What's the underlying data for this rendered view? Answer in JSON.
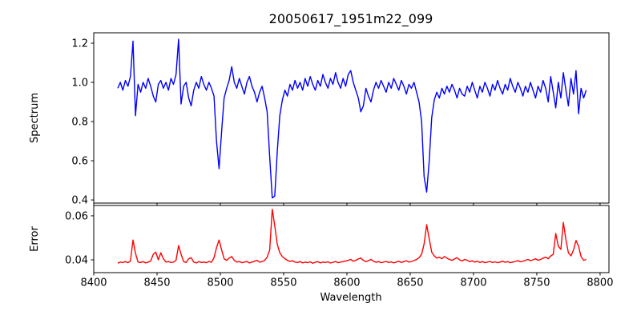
{
  "title": "20050617_1951m22_099",
  "colors": {
    "spectrum_line": "#0000ff",
    "error_line": "#ff0000",
    "frame": "#000000",
    "background": "#ffffff"
  },
  "chart_data": {
    "type": "line",
    "title": "20050617_1951m22_099",
    "xlabel": "Wavelength",
    "grid": false,
    "legend": "none",
    "xlim": [
      8400,
      8807
    ],
    "x_tick_values": [
      8400,
      8450,
      8500,
      8550,
      8600,
      8650,
      8700,
      8750,
      8800
    ],
    "x_tick_labels": [
      "8400",
      "8450",
      "8500",
      "8550",
      "8600",
      "8650",
      "8700",
      "8750",
      "8800"
    ],
    "panels": [
      {
        "name": "spectrum",
        "ylabel": "Spectrum",
        "line_color": "#0000ff",
        "ylim": [
          0.384,
          1.253
        ],
        "y_tick_values": [
          0.4,
          0.6,
          0.8,
          1.0,
          1.2
        ],
        "y_tick_labels": [
          "0.4",
          "0.6",
          "0.8",
          "1.0",
          "1.2"
        ],
        "x0": 8419,
        "dx": 2,
        "values": [
          0.97,
          1.0,
          0.96,
          1.01,
          0.98,
          1.03,
          1.21,
          0.83,
          0.99,
          0.95,
          1.0,
          0.97,
          1.02,
          0.98,
          0.93,
          0.9,
          0.99,
          1.01,
          0.97,
          1.0,
          0.96,
          1.02,
          0.99,
          1.04,
          1.22,
          0.89,
          0.98,
          1.0,
          0.92,
          0.88,
          0.96,
          1.0,
          0.97,
          1.03,
          0.99,
          0.96,
          1.0,
          0.97,
          0.93,
          0.7,
          0.56,
          0.75,
          0.92,
          0.97,
          1.01,
          1.08,
          1.0,
          0.97,
          1.02,
          0.98,
          0.94,
          1.0,
          1.03,
          0.98,
          0.95,
          0.9,
          0.95,
          0.98,
          0.92,
          0.85,
          0.62,
          0.41,
          0.42,
          0.65,
          0.83,
          0.91,
          0.96,
          0.93,
          0.99,
          0.96,
          1.01,
          0.97,
          1.0,
          0.96,
          1.02,
          0.98,
          1.03,
          0.99,
          0.96,
          1.01,
          0.98,
          1.04,
          1.0,
          0.97,
          1.02,
          0.99,
          1.05,
          1.0,
          0.97,
          1.02,
          0.98,
          1.04,
          1.06,
          1.0,
          0.96,
          0.92,
          0.85,
          0.88,
          0.97,
          0.93,
          0.9,
          0.96,
          1.0,
          0.97,
          1.01,
          0.98,
          0.95,
          1.0,
          0.97,
          1.02,
          0.99,
          0.96,
          1.01,
          0.98,
          0.94,
          0.99,
          0.97,
          1.0,
          0.95,
          0.9,
          0.8,
          0.52,
          0.44,
          0.6,
          0.82,
          0.91,
          0.95,
          0.92,
          0.97,
          0.94,
          0.98,
          0.95,
          0.99,
          0.96,
          0.92,
          0.97,
          0.94,
          0.93,
          0.98,
          0.95,
          1.0,
          0.96,
          0.92,
          0.98,
          0.95,
          1.0,
          0.97,
          0.93,
          0.99,
          0.96,
          1.01,
          0.97,
          0.94,
          0.99,
          0.96,
          1.02,
          0.98,
          0.95,
          1.0,
          0.97,
          0.93,
          0.98,
          0.95,
          1.0,
          0.96,
          0.92,
          0.98,
          0.95,
          1.01,
          0.97,
          0.9,
          1.03,
          0.95,
          0.87,
          1.0,
          0.92,
          1.05,
          0.96,
          0.88,
          1.02,
          0.94,
          1.06,
          0.84,
          0.97,
          0.92,
          0.96
        ]
      },
      {
        "name": "error",
        "ylabel": "Error",
        "line_color": "#ff0000",
        "ylim": [
          0.0342,
          0.0647
        ],
        "y_tick_values": [
          0.04,
          0.06
        ],
        "y_tick_labels": [
          "0.04",
          "0.06"
        ],
        "x0": 8419,
        "dx": 2,
        "values": [
          0.0385,
          0.039,
          0.0388,
          0.0392,
          0.0387,
          0.0395,
          0.049,
          0.043,
          0.039,
          0.0388,
          0.0392,
          0.0386,
          0.039,
          0.0395,
          0.0425,
          0.0435,
          0.04,
          0.0432,
          0.0405,
          0.039,
          0.0392,
          0.0388,
          0.039,
          0.0398,
          0.0465,
          0.0425,
          0.0392,
          0.0388,
          0.0405,
          0.041,
          0.039,
          0.0386,
          0.0392,
          0.0388,
          0.039,
          0.0387,
          0.0393,
          0.0389,
          0.041,
          0.0455,
          0.049,
          0.0445,
          0.0405,
          0.0398,
          0.0408,
          0.0415,
          0.0398,
          0.039,
          0.0393,
          0.0387,
          0.039,
          0.0392,
          0.0386,
          0.039,
          0.0394,
          0.0398,
          0.039,
          0.0392,
          0.0398,
          0.0412,
          0.0445,
          0.063,
          0.0555,
          0.047,
          0.0432,
          0.0415,
          0.0405,
          0.0398,
          0.0393,
          0.0396,
          0.039,
          0.0388,
          0.0392,
          0.0386,
          0.039,
          0.0387,
          0.0391,
          0.0385,
          0.0389,
          0.0392,
          0.0386,
          0.039,
          0.0388,
          0.0391,
          0.0386,
          0.0389,
          0.0393,
          0.0387,
          0.039,
          0.0392,
          0.0395,
          0.0398,
          0.0402,
          0.0394,
          0.0398,
          0.0404,
          0.0408,
          0.0398,
          0.0392,
          0.0396,
          0.0402,
          0.0394,
          0.0389,
          0.0392,
          0.0387,
          0.039,
          0.0393,
          0.0388,
          0.0391,
          0.0386,
          0.039,
          0.0394,
          0.0388,
          0.0392,
          0.0396,
          0.039,
          0.0393,
          0.0397,
          0.0402,
          0.041,
          0.0425,
          0.0472,
          0.056,
          0.0495,
          0.0435,
          0.0418,
          0.0408,
          0.0412,
          0.0405,
          0.0415,
          0.0408,
          0.0402,
          0.0398,
          0.0404,
          0.041,
          0.04,
          0.0395,
          0.0402,
          0.0398,
          0.0392,
          0.0396,
          0.039,
          0.0394,
          0.0388,
          0.0392,
          0.0387,
          0.039,
          0.0393,
          0.0388,
          0.0391,
          0.0387,
          0.039,
          0.0394,
          0.0389,
          0.0392,
          0.0387,
          0.039,
          0.0393,
          0.0397,
          0.0391,
          0.0394,
          0.0398,
          0.0402,
          0.0396,
          0.04,
          0.0405,
          0.0398,
          0.0402,
          0.0408,
          0.0412,
          0.0405,
          0.0418,
          0.0425,
          0.052,
          0.0462,
          0.0448,
          0.057,
          0.0492,
          0.0432,
          0.0418,
          0.0445,
          0.0488,
          0.0462,
          0.0415,
          0.0398,
          0.0402
        ]
      }
    ],
    "notable_features": {
      "absorption_lines": [
        {
          "wavelength": 8498,
          "min_value": 0.56
        },
        {
          "wavelength": 8542,
          "min_value": 0.41
        },
        {
          "wavelength": 8662,
          "min_value": 0.44
        }
      ],
      "emission_spikes": [
        {
          "wavelength": 8431,
          "peak_value": 1.21
        },
        {
          "wavelength": 8467,
          "peak_value": 1.22
        }
      ],
      "error_peaks": [
        {
          "wavelength": 8431,
          "value": 0.049
        },
        {
          "wavelength": 8498,
          "value": 0.049
        },
        {
          "wavelength": 8542,
          "value": 0.063
        },
        {
          "wavelength": 8662,
          "value": 0.056
        },
        {
          "wavelength": 8765,
          "value": 0.052
        },
        {
          "wavelength": 8771,
          "value": 0.057
        }
      ]
    }
  }
}
